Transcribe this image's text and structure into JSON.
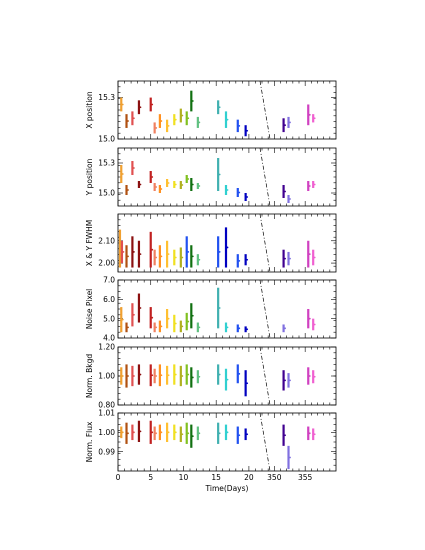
{
  "chart_data": {
    "type": "scatter",
    "xlabel": "Time(Days)",
    "x_ticks_left": [
      "0",
      "5",
      "10",
      "15",
      "20"
    ],
    "x_ticks_right": [
      "350",
      "355"
    ],
    "epoch_colors": [
      "#f0a030",
      "#b05010",
      "#e05050",
      "#8b1010",
      "#c02020",
      "#f08060",
      "#ff9020",
      "#ffc030",
      "#f0e020",
      "#b0b020",
      "#80c020",
      "#30a030",
      "#107010",
      "#60c080",
      "#40b0b0",
      "#30d0d0",
      "#2050f0",
      "#0000c0",
      "#400090",
      "#8070e0",
      "#d040c0",
      "#f060d0",
      "#a00060"
    ],
    "panels": [
      {
        "ylabel": "X position",
        "ylim": [
          15.0,
          15.42
        ],
        "yticks": [
          "15.0",
          "15.3"
        ],
        "epochs": [
          {
            "x": 0.5,
            "lo": 15.2,
            "hi": 15.3,
            "c": 0
          },
          {
            "x": 1.3,
            "lo": 15.08,
            "hi": 15.18,
            "c": 1
          },
          {
            "x": 2.2,
            "lo": 15.1,
            "hi": 15.2,
            "c": 2
          },
          {
            "x": 3.2,
            "lo": 15.18,
            "hi": 15.28,
            "c": 3
          },
          {
            "x": 5.0,
            "lo": 15.2,
            "hi": 15.3,
            "c": 4
          },
          {
            "x": 5.6,
            "lo": 15.04,
            "hi": 15.12,
            "c": 5
          },
          {
            "x": 6.4,
            "lo": 15.08,
            "hi": 15.18,
            "c": 6
          },
          {
            "x": 7.5,
            "lo": 15.05,
            "hi": 15.14,
            "c": 7
          },
          {
            "x": 8.6,
            "lo": 15.1,
            "hi": 15.18,
            "c": 8
          },
          {
            "x": 9.6,
            "lo": 15.12,
            "hi": 15.22,
            "c": 9
          },
          {
            "x": 10.5,
            "lo": 15.1,
            "hi": 15.2,
            "c": 10
          },
          {
            "x": 11.2,
            "lo": 15.2,
            "hi": 15.35,
            "c": 12
          },
          {
            "x": 12.2,
            "lo": 15.08,
            "hi": 15.16,
            "c": 13
          },
          {
            "x": 15.3,
            "lo": 15.18,
            "hi": 15.28,
            "c": 14
          },
          {
            "x": 16.5,
            "lo": 15.08,
            "hi": 15.2,
            "c": 15
          },
          {
            "x": 18.3,
            "lo": 15.05,
            "hi": 15.14,
            "c": 16
          },
          {
            "x": 19.5,
            "lo": 15.02,
            "hi": 15.1,
            "c": 17
          },
          {
            "x": 351.5,
            "lo": 15.05,
            "hi": 15.15,
            "c": 18
          },
          {
            "x": 352.3,
            "lo": 15.08,
            "hi": 15.16,
            "c": 19
          },
          {
            "x": 355.5,
            "lo": 15.1,
            "hi": 15.25,
            "c": 20
          },
          {
            "x": 356.3,
            "lo": 15.12,
            "hi": 15.18,
            "c": 21
          }
        ]
      },
      {
        "ylabel": "Y position",
        "ylim": [
          14.87,
          15.45
        ],
        "yticks": [
          "15.0",
          "15.3"
        ],
        "epochs": [
          {
            "x": 0.5,
            "lo": 15.1,
            "hi": 15.28,
            "c": 0
          },
          {
            "x": 1.3,
            "lo": 14.98,
            "hi": 15.08,
            "c": 1
          },
          {
            "x": 2.2,
            "lo": 15.18,
            "hi": 15.32,
            "c": 2
          },
          {
            "x": 3.2,
            "lo": 15.05,
            "hi": 15.12,
            "c": 3
          },
          {
            "x": 5.0,
            "lo": 15.1,
            "hi": 15.22,
            "c": 4
          },
          {
            "x": 5.6,
            "lo": 15.02,
            "hi": 15.1,
            "c": 5
          },
          {
            "x": 6.4,
            "lo": 15.0,
            "hi": 15.08,
            "c": 6
          },
          {
            "x": 7.5,
            "lo": 15.06,
            "hi": 15.14,
            "c": 7
          },
          {
            "x": 8.6,
            "lo": 15.05,
            "hi": 15.12,
            "c": 8
          },
          {
            "x": 9.6,
            "lo": 15.04,
            "hi": 15.12,
            "c": 9
          },
          {
            "x": 10.5,
            "lo": 15.1,
            "hi": 15.18,
            "c": 10
          },
          {
            "x": 11.2,
            "lo": 15.02,
            "hi": 15.15,
            "c": 12
          },
          {
            "x": 12.2,
            "lo": 15.04,
            "hi": 15.1,
            "c": 13
          },
          {
            "x": 15.3,
            "lo": 15.02,
            "hi": 15.35,
            "c": 14
          },
          {
            "x": 16.5,
            "lo": 14.98,
            "hi": 15.08,
            "c": 15
          },
          {
            "x": 18.3,
            "lo": 14.96,
            "hi": 15.05,
            "c": 16
          },
          {
            "x": 19.5,
            "lo": 14.92,
            "hi": 15.0,
            "c": 17
          },
          {
            "x": 351.5,
            "lo": 14.95,
            "hi": 15.08,
            "c": 18
          },
          {
            "x": 352.3,
            "lo": 14.9,
            "hi": 14.98,
            "c": 19
          },
          {
            "x": 355.5,
            "lo": 15.02,
            "hi": 15.12,
            "c": 20
          },
          {
            "x": 356.3,
            "lo": 15.05,
            "hi": 15.12,
            "c": 21
          }
        ]
      },
      {
        "ylabel": "X & Y FWHM",
        "ylim": [
          1.96,
          2.22
        ],
        "yticks": [
          "2.00",
          "2.10"
        ],
        "epochs": [
          {
            "x": 0.3,
            "lo": 1.98,
            "hi": 2.15,
            "c": 0
          },
          {
            "x": 0.6,
            "lo": 2.0,
            "hi": 2.1,
            "c": 2
          },
          {
            "x": 1.3,
            "lo": 1.98,
            "hi": 2.08,
            "c": 1
          },
          {
            "x": 2.2,
            "lo": 1.98,
            "hi": 2.12,
            "c": 3
          },
          {
            "x": 3.2,
            "lo": 1.98,
            "hi": 2.1,
            "c": 3
          },
          {
            "x": 5.0,
            "lo": 1.98,
            "hi": 2.14,
            "c": 4
          },
          {
            "x": 5.6,
            "lo": 1.99,
            "hi": 2.06,
            "c": 5
          },
          {
            "x": 6.4,
            "lo": 1.98,
            "hi": 2.08,
            "c": 6
          },
          {
            "x": 7.5,
            "lo": 1.98,
            "hi": 2.1,
            "c": 7
          },
          {
            "x": 8.6,
            "lo": 1.99,
            "hi": 2.06,
            "c": 8
          },
          {
            "x": 9.6,
            "lo": 1.98,
            "hi": 2.07,
            "c": 9
          },
          {
            "x": 10.5,
            "lo": 1.98,
            "hi": 2.12,
            "c": 16
          },
          {
            "x": 11.2,
            "lo": 1.98,
            "hi": 2.08,
            "c": 12
          },
          {
            "x": 12.2,
            "lo": 1.99,
            "hi": 2.04,
            "c": 13
          },
          {
            "x": 15.3,
            "lo": 1.98,
            "hi": 2.12,
            "c": 16
          },
          {
            "x": 16.5,
            "lo": 1.98,
            "hi": 2.16,
            "c": 17
          },
          {
            "x": 18.3,
            "lo": 1.98,
            "hi": 2.04,
            "c": 16
          },
          {
            "x": 19.5,
            "lo": 1.99,
            "hi": 2.04,
            "c": 17
          },
          {
            "x": 351.5,
            "lo": 1.98,
            "hi": 2.06,
            "c": 18
          },
          {
            "x": 352.3,
            "lo": 1.99,
            "hi": 2.05,
            "c": 19
          },
          {
            "x": 355.5,
            "lo": 1.98,
            "hi": 2.1,
            "c": 20
          },
          {
            "x": 356.3,
            "lo": 1.99,
            "hi": 2.06,
            "c": 21
          }
        ]
      },
      {
        "ylabel": "Noise Pixel",
        "ylim": [
          4.0,
          7.0
        ],
        "yticks": [
          "4.0",
          "5.0",
          "6.0",
          "7.0"
        ],
        "epochs": [
          {
            "x": 0.5,
            "lo": 4.3,
            "hi": 5.6,
            "c": 0
          },
          {
            "x": 1.3,
            "lo": 4.3,
            "hi": 4.8,
            "c": 1
          },
          {
            "x": 2.2,
            "lo": 4.6,
            "hi": 5.8,
            "c": 2
          },
          {
            "x": 3.2,
            "lo": 4.8,
            "hi": 6.3,
            "c": 3
          },
          {
            "x": 5.0,
            "lo": 4.5,
            "hi": 5.6,
            "c": 4
          },
          {
            "x": 5.6,
            "lo": 4.3,
            "hi": 4.8,
            "c": 5
          },
          {
            "x": 6.4,
            "lo": 4.3,
            "hi": 4.9,
            "c": 6
          },
          {
            "x": 7.5,
            "lo": 4.5,
            "hi": 5.5,
            "c": 7
          },
          {
            "x": 8.6,
            "lo": 4.3,
            "hi": 5.2,
            "c": 8
          },
          {
            "x": 9.6,
            "lo": 4.3,
            "hi": 4.9,
            "c": 9
          },
          {
            "x": 10.5,
            "lo": 4.4,
            "hi": 5.3,
            "c": 10
          },
          {
            "x": 11.2,
            "lo": 4.5,
            "hi": 5.8,
            "c": 12
          },
          {
            "x": 12.2,
            "lo": 4.3,
            "hi": 4.8,
            "c": 13
          },
          {
            "x": 15.3,
            "lo": 4.5,
            "hi": 6.6,
            "c": 14
          },
          {
            "x": 16.5,
            "lo": 4.3,
            "hi": 4.8,
            "c": 15
          },
          {
            "x": 18.3,
            "lo": 4.3,
            "hi": 4.7,
            "c": 16
          },
          {
            "x": 19.5,
            "lo": 4.3,
            "hi": 4.6,
            "c": 17
          },
          {
            "x": 351.5,
            "lo": 4.3,
            "hi": 4.7,
            "c": 19
          },
          {
            "x": 355.5,
            "lo": 4.5,
            "hi": 5.5,
            "c": 20
          },
          {
            "x": 356.3,
            "lo": 4.4,
            "hi": 5.0,
            "c": 21
          }
        ]
      },
      {
        "ylabel": "Norm. Bkgd",
        "ylim": [
          0.8,
          1.2
        ],
        "yticks": [
          "0.80",
          "1.00",
          "1.20"
        ],
        "epochs": [
          {
            "x": 0.5,
            "lo": 0.94,
            "hi": 1.06,
            "c": 0
          },
          {
            "x": 1.3,
            "lo": 0.92,
            "hi": 1.08,
            "c": 1
          },
          {
            "x": 2.2,
            "lo": 0.93,
            "hi": 1.07,
            "c": 2
          },
          {
            "x": 3.2,
            "lo": 0.94,
            "hi": 1.08,
            "c": 3
          },
          {
            "x": 5.0,
            "lo": 0.93,
            "hi": 1.08,
            "c": 4
          },
          {
            "x": 5.6,
            "lo": 0.95,
            "hi": 1.05,
            "c": 5
          },
          {
            "x": 6.4,
            "lo": 0.93,
            "hi": 1.08,
            "c": 6
          },
          {
            "x": 7.5,
            "lo": 0.94,
            "hi": 1.07,
            "c": 7
          },
          {
            "x": 8.6,
            "lo": 0.94,
            "hi": 1.08,
            "c": 8
          },
          {
            "x": 9.6,
            "lo": 0.93,
            "hi": 1.07,
            "c": 9
          },
          {
            "x": 10.5,
            "lo": 0.94,
            "hi": 1.08,
            "c": 10
          },
          {
            "x": 11.2,
            "lo": 0.92,
            "hi": 1.06,
            "c": 12
          },
          {
            "x": 12.2,
            "lo": 0.95,
            "hi": 1.04,
            "c": 13
          },
          {
            "x": 15.3,
            "lo": 0.94,
            "hi": 1.08,
            "c": 14
          },
          {
            "x": 16.5,
            "lo": 0.9,
            "hi": 1.05,
            "c": 15
          },
          {
            "x": 18.3,
            "lo": 0.95,
            "hi": 1.08,
            "c": 16
          },
          {
            "x": 19.5,
            "lo": 0.86,
            "hi": 1.04,
            "c": 17
          },
          {
            "x": 351.5,
            "lo": 0.9,
            "hi": 1.04,
            "c": 18
          },
          {
            "x": 352.3,
            "lo": 0.92,
            "hi": 1.02,
            "c": 19
          },
          {
            "x": 355.5,
            "lo": 0.94,
            "hi": 1.06,
            "c": 20
          },
          {
            "x": 356.3,
            "lo": 0.95,
            "hi": 1.04,
            "c": 21
          }
        ]
      },
      {
        "ylabel": "Norm. Flux",
        "ylim": [
          0.98,
          1.01
        ],
        "yticks": [
          "0.99",
          "1.00",
          "1.01"
        ],
        "epochs": [
          {
            "x": 0.5,
            "lo": 0.997,
            "hi": 1.003,
            "c": 0
          },
          {
            "x": 1.3,
            "lo": 0.994,
            "hi": 1.005,
            "c": 1
          },
          {
            "x": 2.2,
            "lo": 0.996,
            "hi": 1.004,
            "c": 2
          },
          {
            "x": 3.2,
            "lo": 0.995,
            "hi": 1.006,
            "c": 3
          },
          {
            "x": 5.0,
            "lo": 0.994,
            "hi": 1.006,
            "c": 4
          },
          {
            "x": 5.6,
            "lo": 0.996,
            "hi": 1.003,
            "c": 5
          },
          {
            "x": 6.4,
            "lo": 0.996,
            "hi": 1.004,
            "c": 6
          },
          {
            "x": 7.5,
            "lo": 0.995,
            "hi": 1.005,
            "c": 7
          },
          {
            "x": 8.6,
            "lo": 0.996,
            "hi": 1.004,
            "c": 8
          },
          {
            "x": 9.6,
            "lo": 0.995,
            "hi": 1.003,
            "c": 9
          },
          {
            "x": 10.5,
            "lo": 0.994,
            "hi": 1.005,
            "c": 10
          },
          {
            "x": 11.2,
            "lo": 0.992,
            "hi": 1.004,
            "c": 12
          },
          {
            "x": 12.2,
            "lo": 0.996,
            "hi": 1.003,
            "c": 13
          },
          {
            "x": 15.3,
            "lo": 0.994,
            "hi": 1.005,
            "c": 14
          },
          {
            "x": 16.5,
            "lo": 0.996,
            "hi": 1.004,
            "c": 15
          },
          {
            "x": 18.3,
            "lo": 0.994,
            "hi": 1.003,
            "c": 16
          },
          {
            "x": 19.5,
            "lo": 0.996,
            "hi": 1.002,
            "c": 17
          },
          {
            "x": 351.5,
            "lo": 0.993,
            "hi": 1.004,
            "c": 18
          },
          {
            "x": 352.3,
            "lo": 0.981,
            "hi": 0.993,
            "c": 19
          },
          {
            "x": 355.5,
            "lo": 0.996,
            "hi": 1.003,
            "c": 20
          },
          {
            "x": 356.3,
            "lo": 0.996,
            "hi": 1.002,
            "c": 21
          }
        ]
      }
    ]
  }
}
